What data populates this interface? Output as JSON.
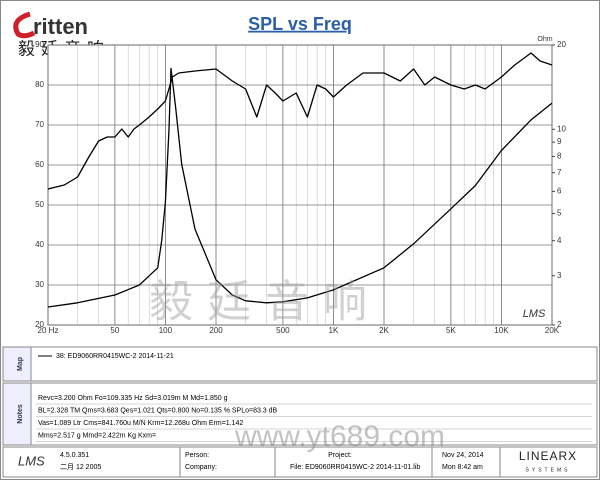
{
  "logo": {
    "brand": "ritten",
    "subtitle": "毅廷音响"
  },
  "chart_data": {
    "type": "line",
    "title": "SPL vs Freq",
    "x_scale": "log",
    "y2_scale": "log",
    "xlim": [
      20,
      20000
    ],
    "xticks": [
      {
        "value": 20,
        "label": "20 Hz"
      },
      50,
      100,
      200,
      500,
      {
        "value": 1000,
        "label": "1K"
      },
      {
        "value": 2000,
        "label": "2K"
      },
      {
        "value": 5000,
        "label": "5K"
      },
      {
        "value": 10000,
        "label": "10K"
      },
      {
        "value": 20000,
        "label": "20K"
      }
    ],
    "ylim": [
      20,
      90
    ],
    "yticks": [
      20,
      30,
      40,
      50,
      60,
      70,
      80,
      90
    ],
    "y2lim": [
      2,
      20
    ],
    "y2ticks": [
      2,
      3,
      4,
      5,
      6,
      7,
      8,
      9,
      10,
      20
    ],
    "y2label": "Ohm",
    "grid": true,
    "minor_grid": true,
    "series": [
      {
        "color": "#000000",
        "x": [
          20,
          25,
          30,
          35,
          40,
          45,
          50,
          55,
          60,
          65,
          70,
          80,
          90,
          100,
          110,
          120,
          150,
          200,
          250,
          300,
          350,
          400,
          450,
          500,
          600,
          700,
          800,
          900,
          1000,
          1200,
          1500,
          2000,
          2500,
          3000,
          3500,
          4000,
          5000,
          6000,
          7000,
          8000,
          10000,
          12000,
          15000,
          17000,
          20000
        ],
        "values": [
          54,
          55,
          57,
          62,
          66,
          67,
          67,
          69,
          67,
          69,
          70,
          72,
          74,
          76,
          82,
          83,
          83.5,
          84,
          81,
          79,
          72,
          80,
          78,
          76,
          78,
          72,
          80,
          79,
          77,
          80,
          83,
          83,
          81,
          84,
          80,
          82,
          80,
          79,
          80,
          79,
          82,
          85,
          88,
          86,
          85
        ]
      },
      {
        "color": "#000000",
        "axis": "y2",
        "x": [
          20,
          30,
          50,
          70,
          90,
          95,
          100,
          105,
          108,
          115,
          125,
          150,
          200,
          250,
          300,
          400,
          500,
          700,
          1000,
          2000,
          3000,
          5000,
          7000,
          10000,
          15000,
          20000
        ],
        "values": [
          2.32,
          2.4,
          2.56,
          2.78,
          3.2,
          4.0,
          5.5,
          10,
          16.5,
          12,
          7.5,
          4.4,
          2.9,
          2.56,
          2.44,
          2.4,
          2.42,
          2.5,
          2.67,
          3.2,
          3.9,
          5.2,
          6.3,
          8.4,
          10.8,
          12.4
        ]
      }
    ]
  },
  "chart_logo": "LMS",
  "legend_panel": {
    "label": "Map",
    "entry": "38: ED9060RR0415WC-2   2014-11-21"
  },
  "notes": {
    "label": "Notes",
    "lines": [
      "Revc=3.200 Ohm   Fo=109.335 Hz   Sd=3.019m M   Md=1.850 g",
      "BL=2.328 TM   Qms=3.683   Qes=1.021   Qts=0.800   No=0.135 %   SPLo=83.3 dB",
      "Vas=1.089 Ltr   Cms=841.760u M/N   Krm=12.268u Ohm   Erm=1.142",
      "Mms=2.517 g   Mmd=2.422m Kg   Kxm="
    ]
  },
  "footer": {
    "logo": "LMS",
    "version": "4.5.0.351",
    "build_date": "二月 12 2005",
    "person": "Person:",
    "company": "Company:",
    "project": "Project:",
    "file": "File: ED9060RR0415WC-2   2014-11-01.lib",
    "date": "Nov 24, 2014",
    "time": "Mon  8:42 am",
    "brand": "LINEARX",
    "brand_sub": "SYSTEMS"
  },
  "watermark": {
    "text": "毅廷音响",
    "url": "www.yt689.com"
  }
}
